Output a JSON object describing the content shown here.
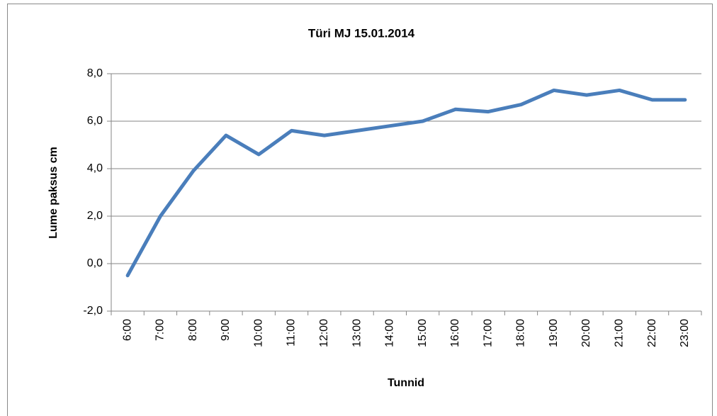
{
  "chart_data": {
    "type": "line",
    "title": "Türi MJ 15.01.2014",
    "x_label": "Tunnid",
    "y_label": "Lume paksus cm",
    "categories": [
      "6:00",
      "7:00",
      "8:00",
      "9:00",
      "10:00",
      "11:00",
      "12:00",
      "13:00",
      "14:00",
      "15:00",
      "16:00",
      "17:00",
      "18:00",
      "19:00",
      "20:00",
      "21:00",
      "22:00",
      "23:00"
    ],
    "series": [
      {
        "name": "Lume paksus",
        "color": "#4a7ebb",
        "values": [
          -0.5,
          2.0,
          3.9,
          5.4,
          4.6,
          5.6,
          5.4,
          5.6,
          5.8,
          6.0,
          6.5,
          6.4,
          6.7,
          7.3,
          7.1,
          7.3,
          6.9,
          6.9
        ]
      }
    ],
    "ylim": [
      -2,
      8
    ],
    "yticks": [
      {
        "value": -2,
        "label": "-2,0"
      },
      {
        "value": 0,
        "label": "0,0"
      },
      {
        "value": 2,
        "label": "2,0"
      },
      {
        "value": 4,
        "label": "4,0"
      },
      {
        "value": 6,
        "label": "6,0"
      },
      {
        "value": 8,
        "label": "8,0"
      }
    ],
    "grid": true
  }
}
